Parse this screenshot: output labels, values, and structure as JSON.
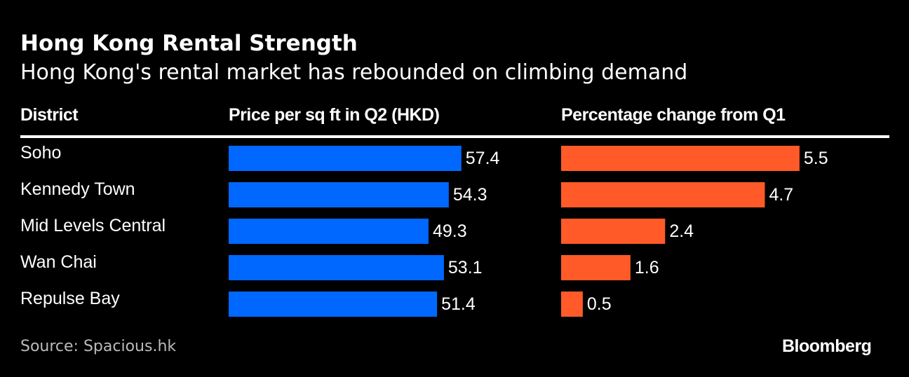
{
  "chart_data": {
    "type": "bar",
    "orientation": "horizontal",
    "title": "Hong Kong Rental Strength",
    "subtitle": "Hong Kong's rental market has rebounded on climbing demand",
    "category_header": "District",
    "categories": [
      "Soho",
      "Kennedy Town",
      "Mid Levels Central",
      "Wan Chai",
      "Repulse Bay"
    ],
    "series": [
      {
        "name": "Price per sq ft in Q2 (HKD)",
        "values": [
          57.4,
          54.3,
          49.3,
          53.1,
          51.4
        ],
        "color": "#0068FF"
      },
      {
        "name": "Percentage change from Q1",
        "values": [
          5.5,
          4.7,
          2.4,
          1.6,
          0.5
        ],
        "color": "#FF5A28"
      }
    ],
    "data_labels": true,
    "grid": false,
    "source": "Source: Spacious.hk",
    "brand": "Bloomberg"
  }
}
